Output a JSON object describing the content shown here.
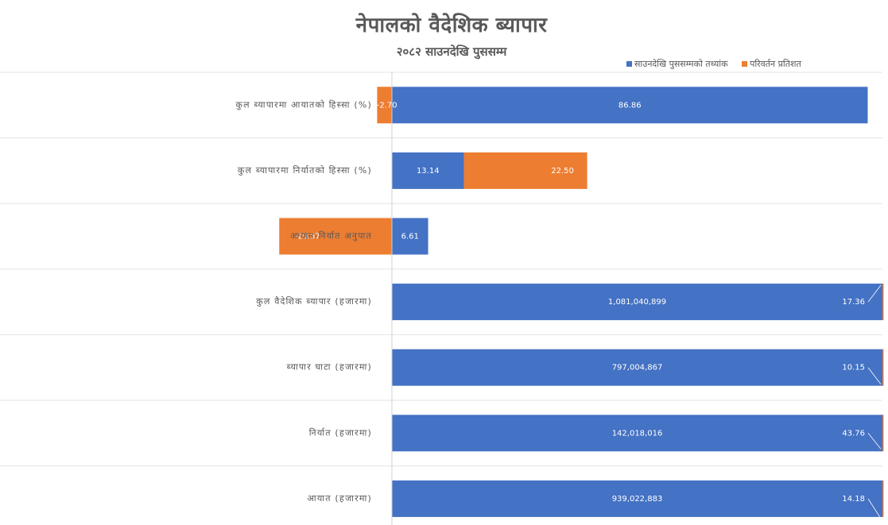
{
  "chart_data": {
    "type": "bar",
    "orientation": "horizontal",
    "title": "नेपालको  वैदेशिक ब्यापार",
    "subtitle": "२०८२ साउनदेखि पुससम्म",
    "categories": [
      "कुल ब्यापारमा आयातको हिस्सा (%)",
      "कुल ब्यापारमा निर्यातको हिस्सा (%)",
      "आयात-निर्यात अनुपात",
      "कुल वैदेशिक ब्यापार  (हजारमा)",
      "ब्यापार घाटा  (हजारमा)",
      "निर्यात  (हजारमा)",
      "आयात (हजारमा)"
    ],
    "series": [
      {
        "name": "साउनदेखि पुससम्मको तथ्यांक",
        "color": "#4472C4",
        "values": [
          86.86,
          13.14,
          6.61,
          1081040899,
          797004867,
          142018016,
          939022883
        ],
        "labels": [
          "86.86",
          "13.14",
          "6.61",
          "1,081,040,899",
          "797,004,867",
          "142,018,016",
          "939,022,883"
        ]
      },
      {
        "name": "परिवर्तन प्रतिशत",
        "color": "#ED7D31",
        "values": [
          -2.7,
          22.5,
          -20.57,
          17.36,
          10.15,
          43.76,
          14.18
        ],
        "labels": [
          "-2.70",
          "22.50",
          "-20.57",
          "17.36",
          "10.15",
          "43.76",
          "14.18"
        ]
      }
    ],
    "legend_position": "top-right",
    "grid": false
  }
}
